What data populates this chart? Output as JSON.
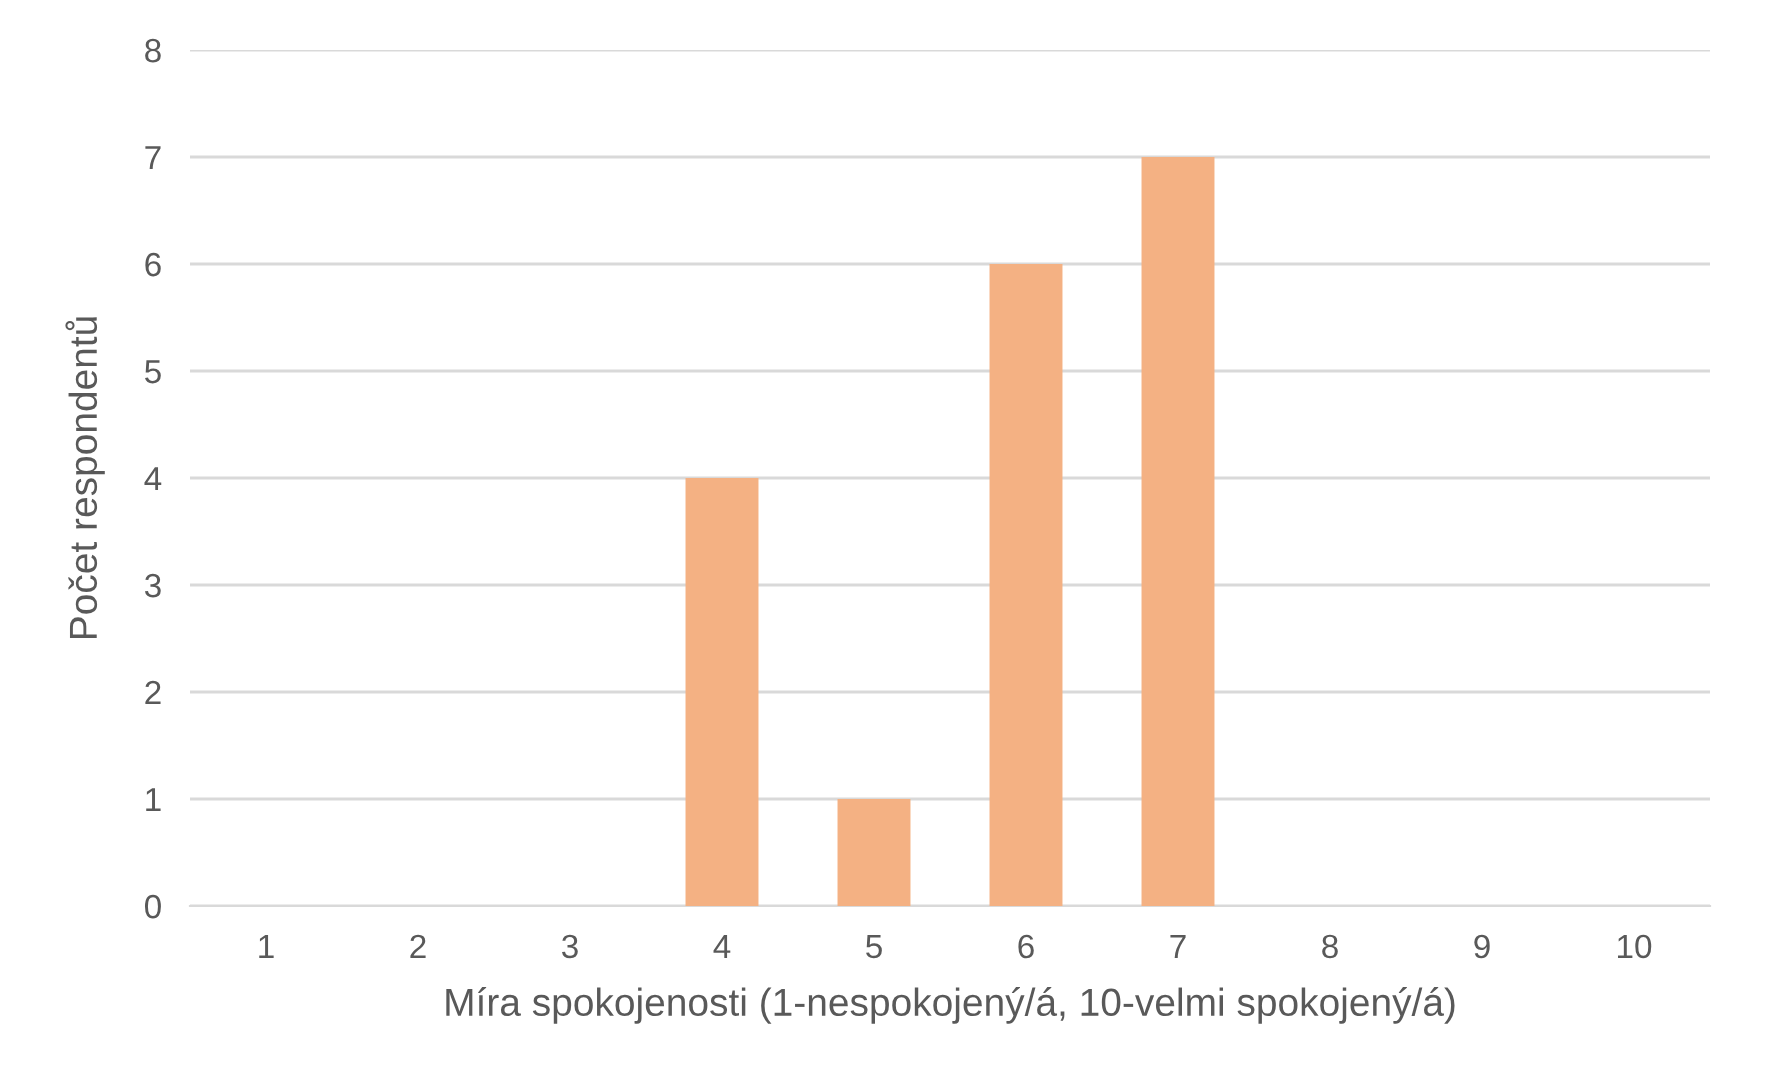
{
  "chart_data": {
    "type": "bar",
    "xlabel": "Míra spokojenosti (1-nespokojený/á, 10-velmi spokojený/á)",
    "ylabel": "Počet respondentů",
    "categories": [
      "1",
      "2",
      "3",
      "4",
      "5",
      "6",
      "7",
      "8",
      "9",
      "10"
    ],
    "values": [
      0,
      0,
      0,
      4,
      1,
      6,
      7,
      0,
      0,
      0
    ],
    "color": "#f4b183",
    "ylim": [
      0,
      8
    ],
    "yticks": [
      0,
      1,
      2,
      3,
      4,
      5,
      6,
      7,
      8
    ],
    "grid": "y",
    "legend": false
  }
}
